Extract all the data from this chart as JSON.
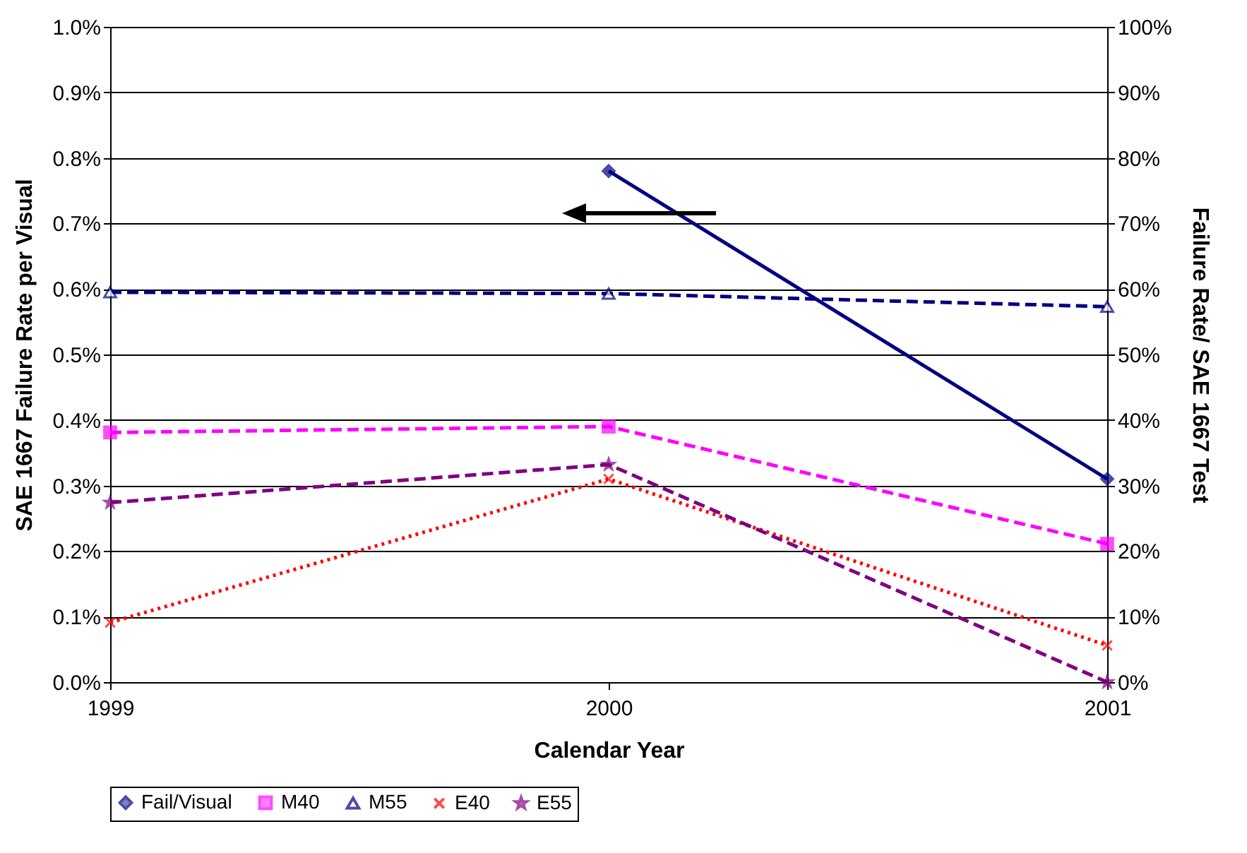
{
  "chart_data": {
    "type": "line",
    "xlabel": "Calendar Year",
    "ylabel": "SAE 1667 Failure Rate per Visual",
    "y2label": "Failure Rate/ SAE 1667 Test",
    "x": [
      1999,
      2000,
      2001
    ],
    "xlim": [
      1999,
      2001
    ],
    "xticks": [
      1999,
      2000,
      2001
    ],
    "ylim": [
      0,
      1
    ],
    "yticks": [
      {
        "value": 0,
        "label": "0.0%"
      },
      {
        "value": 0.1,
        "label": "0.1%"
      },
      {
        "value": 0.2,
        "label": "0.2%"
      },
      {
        "value": 0.3,
        "label": "0.3%"
      },
      {
        "value": 0.4,
        "label": "0.4%"
      },
      {
        "value": 0.5,
        "label": "0.5%"
      },
      {
        "value": 0.6,
        "label": "0.6%"
      },
      {
        "value": 0.7,
        "label": "0.7%"
      },
      {
        "value": 0.8,
        "label": "0.8%"
      },
      {
        "value": 0.9,
        "label": "0.9%"
      },
      {
        "value": 1,
        "label": "1.0%"
      }
    ],
    "y2lim": [
      0,
      100
    ],
    "y2ticks": [
      {
        "value": 0,
        "label": "0%"
      },
      {
        "value": 10,
        "label": "10%"
      },
      {
        "value": 20,
        "label": "20%"
      },
      {
        "value": 30,
        "label": "30%"
      },
      {
        "value": 40,
        "label": "40%"
      },
      {
        "value": 50,
        "label": "50%"
      },
      {
        "value": 60,
        "label": "60%"
      },
      {
        "value": 70,
        "label": "70%"
      },
      {
        "value": 80,
        "label": "80%"
      },
      {
        "value": 90,
        "label": "90%"
      },
      {
        "value": 100,
        "label": "100%"
      }
    ],
    "grid": "y",
    "legend": "bottom",
    "series": [
      {
        "name": "Fail/Visual",
        "color": "#000080",
        "values": [
          null,
          0.78,
          0.31
        ],
        "marker": "diamond",
        "line_style": "solid"
      },
      {
        "name": "M40",
        "color": "#ff00ff",
        "values": [
          38.1,
          39.0,
          21.1
        ],
        "axis": "y2",
        "marker": "square",
        "line_style": "dashed"
      },
      {
        "name": "M55",
        "color": "#000080",
        "values": [
          59.5,
          59.3,
          57.3
        ],
        "axis": "y2",
        "marker": "triangle",
        "line_style": "dashed"
      },
      {
        "name": "E40",
        "color": "#ff0000",
        "values": [
          9.1,
          31.0,
          5.6
        ],
        "axis": "y2",
        "marker": "cross",
        "line_style": "dotted"
      },
      {
        "name": "E55",
        "color": "#800080",
        "values": [
          27.4,
          33.2,
          0
        ],
        "axis": "y2",
        "marker": "star",
        "line_style": "dashed"
      }
    ]
  }
}
